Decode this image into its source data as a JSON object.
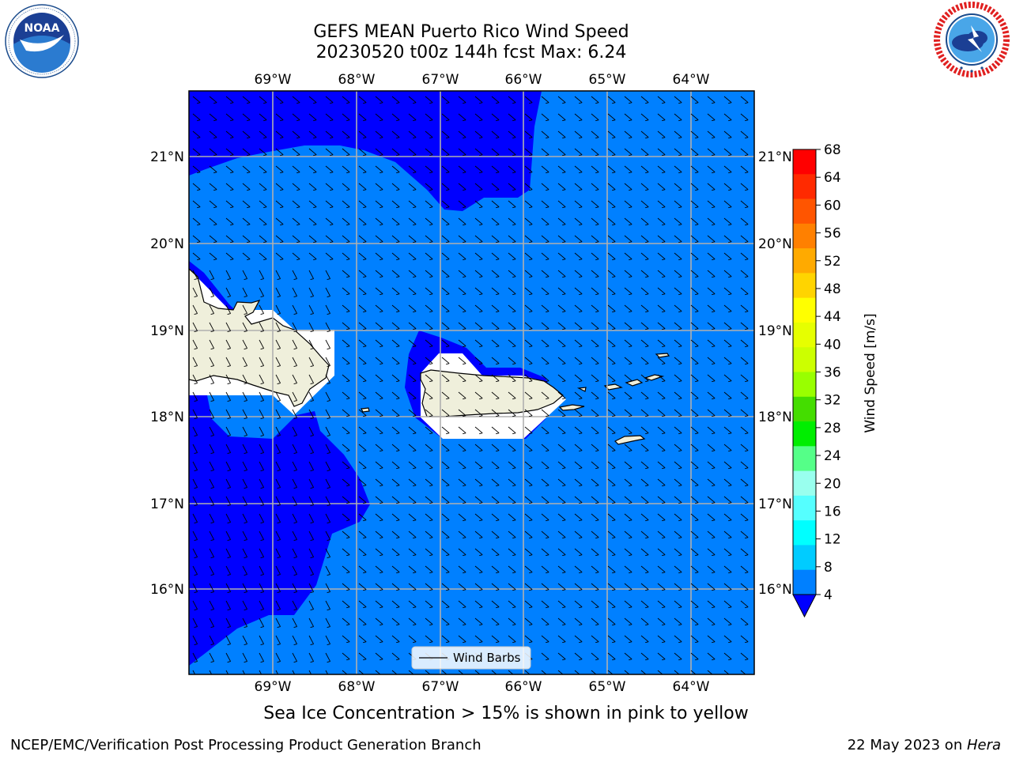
{
  "header": {
    "title_line1": "GEFS MEAN Puerto Rico Wind Speed",
    "title_line2": "20230520 t00z 144h fcst   Max: 6.24"
  },
  "subtitle": "Sea Ice Concentration > 15% is shown in pink to yellow",
  "footer": {
    "left": "NCEP/EMC/Verification Post Processing Product Generation Branch",
    "right_date": "22 May 2023 on ",
    "right_machine": "Hera"
  },
  "logos": {
    "noaa": {
      "label": "NOAA",
      "ring_text": "NATIONAL OCEANIC AND ATMOSPHERIC ADMINISTRATION"
    },
    "nws": {
      "ring_text": "NATIONAL WEATHER SERVICE"
    }
  },
  "map": {
    "lon_labels": [
      "69°W",
      "68°W",
      "67°W",
      "66°W",
      "65°W",
      "64°W"
    ],
    "lat_labels": [
      "21°N",
      "20°N",
      "19°N",
      "18°N",
      "17°N",
      "16°N"
    ],
    "legend_label": "Wind Barbs",
    "colors": {
      "ocean_light": "#0080ff",
      "ocean_dark": "#0000ff",
      "land": "#efefdb",
      "no_data": "#ffffff",
      "gridline": "#b0b0b0"
    }
  },
  "colorbar": {
    "label": "Wind Speed [m/s]",
    "ticks": [
      "68",
      "64",
      "60",
      "56",
      "52",
      "48",
      "44",
      "40",
      "36",
      "32",
      "28",
      "24",
      "20",
      "16",
      "12",
      "8",
      "4"
    ],
    "colors": [
      "#ff0000",
      "#ff2a00",
      "#ff5500",
      "#ff8000",
      "#ffaa00",
      "#ffd400",
      "#ffff00",
      "#e6ff00",
      "#ccff00",
      "#99ff00",
      "#44dd00",
      "#00ee00",
      "#55ff88",
      "#99ffee",
      "#55ffff",
      "#00ffff",
      "#00ccff",
      "#0080ff"
    ],
    "under_color": "#0000ff"
  }
}
